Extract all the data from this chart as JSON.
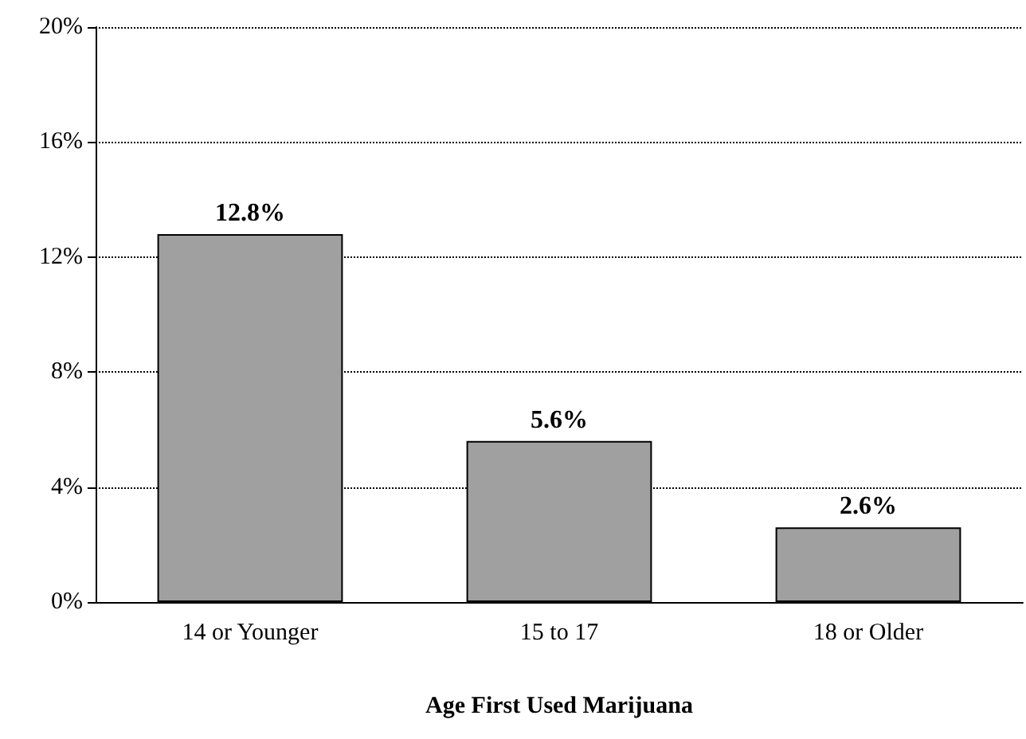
{
  "chart_data": {
    "type": "bar",
    "xlabel": "Age First Used Marijuana",
    "categories": [
      "14 or Younger",
      "15 to 17",
      "18 or Older"
    ],
    "values": [
      12.8,
      5.6,
      2.6
    ],
    "color": "#a0a0a0",
    "value_labels": [
      "12.8%",
      "5.6%",
      "2.6%"
    ],
    "ylim": [
      0,
      20
    ],
    "yticks": [
      {
        "value": 0,
        "label": "0%"
      },
      {
        "value": 4,
        "label": "4%"
      },
      {
        "value": 8,
        "label": "8%"
      },
      {
        "value": 12,
        "label": "12%"
      },
      {
        "value": 16,
        "label": "16%"
      },
      {
        "value": 20,
        "label": "20%"
      }
    ],
    "grid": "y"
  }
}
